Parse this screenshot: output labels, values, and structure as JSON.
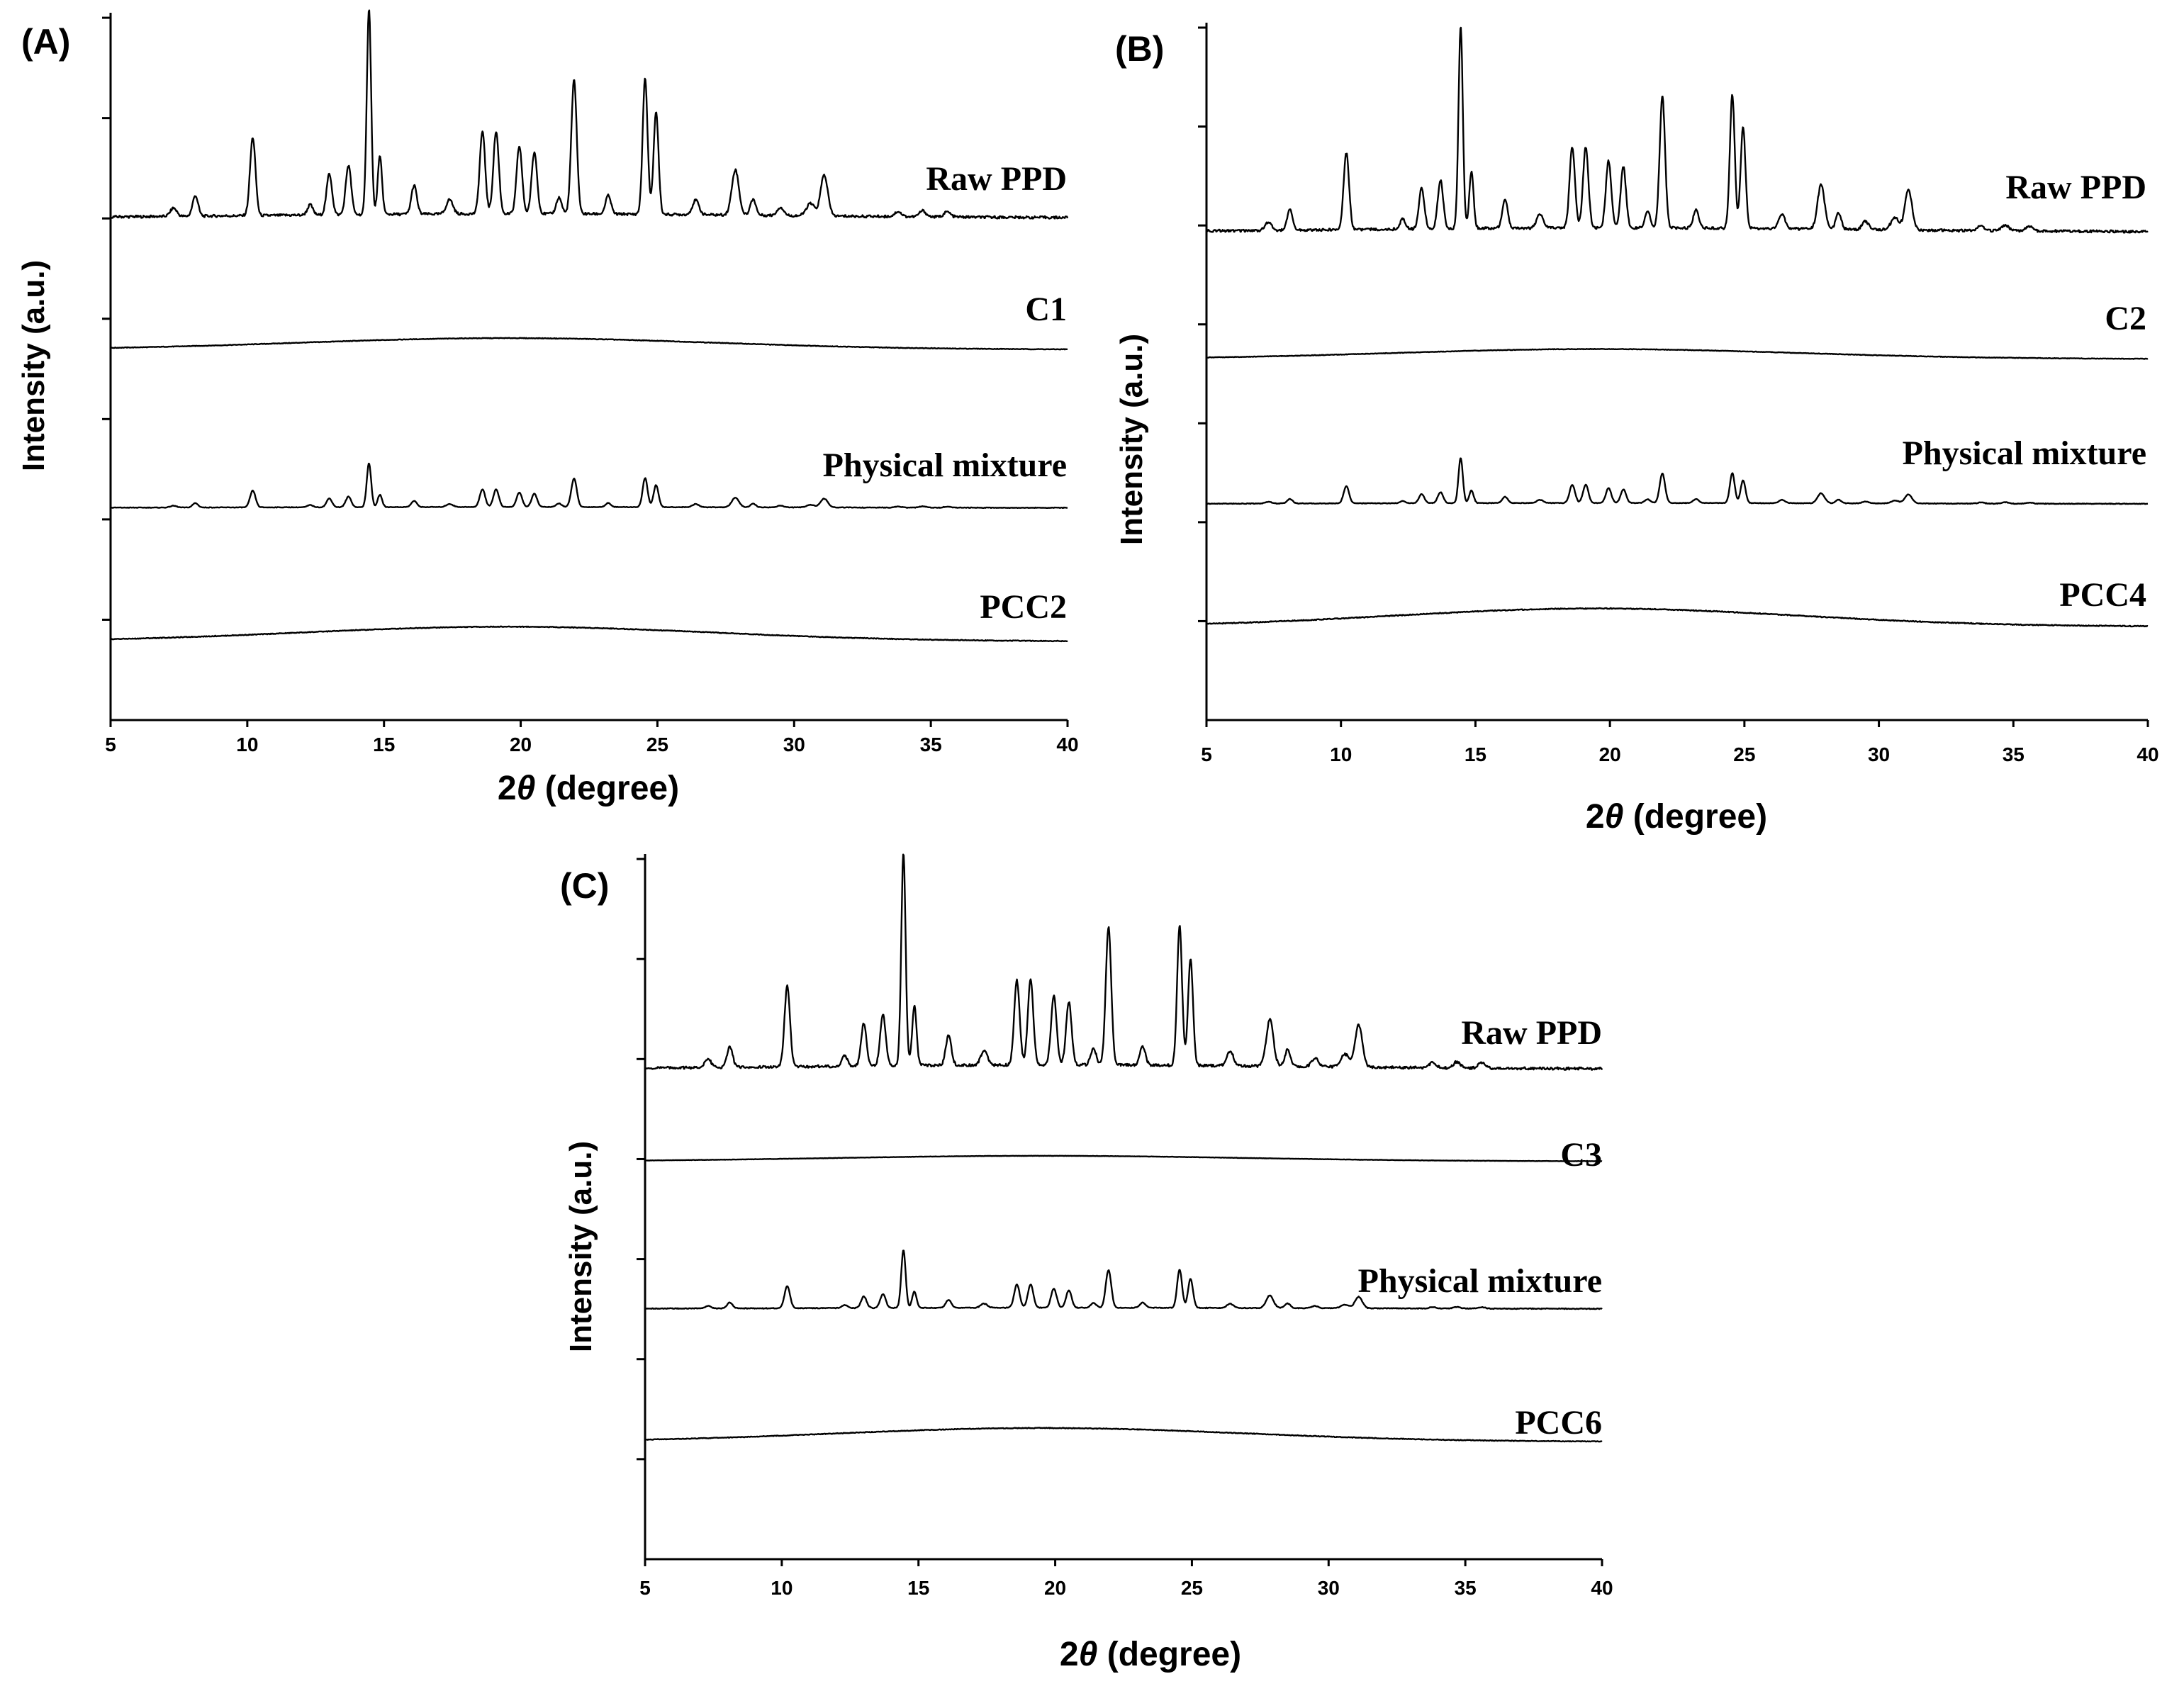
{
  "chart_data": [
    {
      "id": "A",
      "type": "line",
      "panel_label": "(A)",
      "xlabel_prefix": "2",
      "xlabel_symbol": "θ",
      "xlabel_suffix": " (degree)",
      "ylabel": "Intensity (a.u.)",
      "xlim": [
        5,
        40
      ],
      "xticks": [
        5,
        10,
        15,
        20,
        25,
        30,
        35,
        40
      ],
      "series": [
        {
          "name": "Raw PPD",
          "profile": "crystalline",
          "offset": 0.71,
          "scale": 0.29
        },
        {
          "name": "C1",
          "profile": "amorphous",
          "offset": 0.515,
          "scale": 0.025
        },
        {
          "name": "Physical mixture",
          "profile": "crystalline",
          "offset": 0.3,
          "scale": 0.062
        },
        {
          "name": "PCC2",
          "profile": "amorphous",
          "offset": 0.1,
          "scale": 0.032
        }
      ]
    },
    {
      "id": "B",
      "type": "line",
      "panel_label": "(B)",
      "xlabel_prefix": "2",
      "xlabel_symbol": "θ",
      "xlabel_suffix": " (degree)",
      "ylabel": "Intensity (a.u.)",
      "xlim": [
        5,
        40
      ],
      "xticks": [
        5,
        10,
        15,
        20,
        25,
        30,
        35,
        40
      ],
      "series": [
        {
          "name": "Raw PPD",
          "profile": "crystalline",
          "offset": 0.7,
          "scale": 0.29
        },
        {
          "name": "C2",
          "profile": "amorphous",
          "offset": 0.51,
          "scale": 0.022
        },
        {
          "name": "Physical mixture",
          "profile": "crystalline",
          "offset": 0.31,
          "scale": 0.065
        },
        {
          "name": "PCC4",
          "profile": "amorphous",
          "offset": 0.12,
          "scale": 0.04
        }
      ]
    },
    {
      "id": "C",
      "type": "line",
      "panel_label": "(C)",
      "xlabel_prefix": "2",
      "xlabel_symbol": "θ",
      "xlabel_suffix": " (degree)",
      "ylabel": "Intensity (a.u.)",
      "xlim": [
        5,
        40
      ],
      "xticks": [
        5,
        10,
        15,
        20,
        25,
        30,
        35,
        40
      ],
      "series": [
        {
          "name": "Raw PPD",
          "profile": "crystalline",
          "offset": 0.695,
          "scale": 0.3
        },
        {
          "name": "C3",
          "profile": "amorphous",
          "offset": 0.56,
          "scale": 0.012
        },
        {
          "name": "Physical mixture",
          "profile": "crystalline",
          "offset": 0.355,
          "scale": 0.082
        },
        {
          "name": "PCC6",
          "profile": "amorphous",
          "offset": 0.156,
          "scale": 0.03
        }
      ]
    }
  ],
  "peaks": [
    {
      "x": 7.3,
      "h": 0.04,
      "w": 0.12
    },
    {
      "x": 8.1,
      "h": 0.1,
      "w": 0.1
    },
    {
      "x": 10.2,
      "h": 0.38,
      "w": 0.1
    },
    {
      "x": 12.3,
      "h": 0.05,
      "w": 0.1
    },
    {
      "x": 13.0,
      "h": 0.2,
      "w": 0.1
    },
    {
      "x": 13.7,
      "h": 0.24,
      "w": 0.1
    },
    {
      "x": 14.45,
      "h": 1.0,
      "w": 0.08
    },
    {
      "x": 14.85,
      "h": 0.28,
      "w": 0.08
    },
    {
      "x": 16.1,
      "h": 0.14,
      "w": 0.1
    },
    {
      "x": 17.4,
      "h": 0.07,
      "w": 0.12
    },
    {
      "x": 18.6,
      "h": 0.4,
      "w": 0.1
    },
    {
      "x": 19.1,
      "h": 0.4,
      "w": 0.1
    },
    {
      "x": 19.95,
      "h": 0.33,
      "w": 0.1
    },
    {
      "x": 20.5,
      "h": 0.3,
      "w": 0.1
    },
    {
      "x": 21.4,
      "h": 0.08,
      "w": 0.1
    },
    {
      "x": 21.95,
      "h": 0.65,
      "w": 0.1
    },
    {
      "x": 23.2,
      "h": 0.09,
      "w": 0.1
    },
    {
      "x": 24.55,
      "h": 0.66,
      "w": 0.09
    },
    {
      "x": 24.95,
      "h": 0.5,
      "w": 0.09
    },
    {
      "x": 26.4,
      "h": 0.07,
      "w": 0.12
    },
    {
      "x": 27.85,
      "h": 0.22,
      "w": 0.13
    },
    {
      "x": 28.5,
      "h": 0.08,
      "w": 0.1
    },
    {
      "x": 29.5,
      "h": 0.04,
      "w": 0.12
    },
    {
      "x": 30.6,
      "h": 0.06,
      "w": 0.15
    },
    {
      "x": 31.1,
      "h": 0.2,
      "w": 0.13
    },
    {
      "x": 33.8,
      "h": 0.025,
      "w": 0.12
    },
    {
      "x": 34.7,
      "h": 0.03,
      "w": 0.12
    },
    {
      "x": 35.6,
      "h": 0.025,
      "w": 0.12
    }
  ]
}
